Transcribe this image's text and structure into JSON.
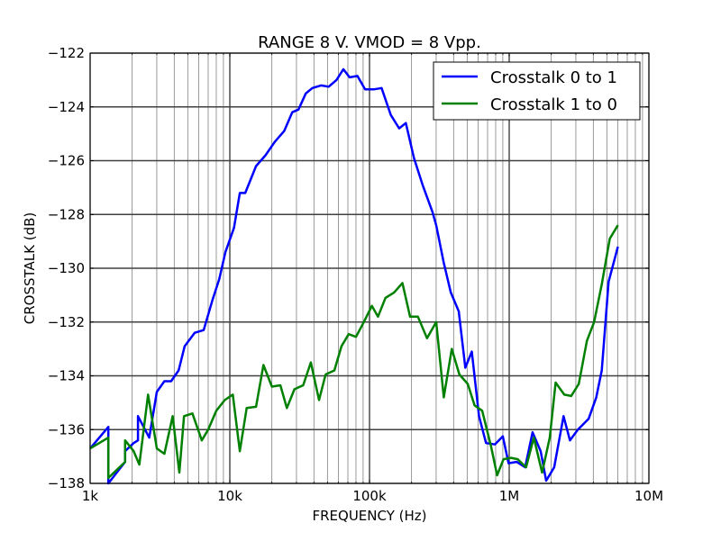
{
  "chart_data": {
    "type": "line",
    "title": "RANGE 8 V. VMOD = 8 Vpp.",
    "xlabel": "FREQUENCY (Hz)",
    "ylabel": "CROSSTALK (dB)",
    "xscale": "log",
    "xlim": [
      1000,
      10000000
    ],
    "ylim": [
      -138,
      -122
    ],
    "x_ticks": [
      1000,
      10000,
      100000,
      1000000,
      10000000
    ],
    "x_tick_labels": [
      "1k",
      "10k",
      "100k",
      "1M",
      "10M"
    ],
    "y_ticks": [
      -122,
      -124,
      -126,
      -128,
      -130,
      -132,
      -134,
      -136,
      -138
    ],
    "y_tick_labels": [
      "−122",
      "−124",
      "−126",
      "−128",
      "−130",
      "−132",
      "−134",
      "−136",
      "−138"
    ],
    "grid": true,
    "legend_position": "top-right",
    "series": [
      {
        "name": "Crosstalk 0 to 1",
        "color": "#0000ff",
        "points": [
          [
            1000,
            -136.7
          ],
          [
            1350,
            -135.9
          ],
          [
            1350,
            -138.0
          ],
          [
            1780,
            -137.2
          ],
          [
            1780,
            -136.8
          ],
          [
            2050,
            -136.5
          ],
          [
            2200,
            -136.4
          ],
          [
            2200,
            -135.5
          ],
          [
            2650,
            -136.3
          ],
          [
            3000,
            -134.6
          ],
          [
            3400,
            -134.2
          ],
          [
            3800,
            -134.2
          ],
          [
            4300,
            -133.8
          ],
          [
            4750,
            -132.9
          ],
          [
            5600,
            -132.4
          ],
          [
            6500,
            -132.3
          ],
          [
            7500,
            -131.2
          ],
          [
            8400,
            -130.4
          ],
          [
            9300,
            -129.4
          ],
          [
            10700,
            -128.5
          ],
          [
            11800,
            -127.2
          ],
          [
            12900,
            -127.2
          ],
          [
            15400,
            -126.2
          ],
          [
            18000,
            -125.8
          ],
          [
            21000,
            -125.3
          ],
          [
            24500,
            -124.9
          ],
          [
            28000,
            -124.2
          ],
          [
            31000,
            -124.1
          ],
          [
            35000,
            -123.5
          ],
          [
            39000,
            -123.3
          ],
          [
            45000,
            -123.2
          ],
          [
            51000,
            -123.25
          ],
          [
            58000,
            -123.0
          ],
          [
            65000,
            -122.6
          ],
          [
            72000,
            -122.9
          ],
          [
            82000,
            -122.85
          ],
          [
            93000,
            -123.35
          ],
          [
            107000,
            -123.35
          ],
          [
            122000,
            -123.3
          ],
          [
            142000,
            -124.3
          ],
          [
            163000,
            -124.8
          ],
          [
            182000,
            -124.6
          ],
          [
            208000,
            -125.9
          ],
          [
            240000,
            -126.9
          ],
          [
            282000,
            -127.9
          ],
          [
            300000,
            -128.4
          ],
          [
            340000,
            -129.8
          ],
          [
            382000,
            -130.9
          ],
          [
            435000,
            -131.6
          ],
          [
            485000,
            -133.7
          ],
          [
            540000,
            -133.1
          ],
          [
            608000,
            -135.5
          ],
          [
            683000,
            -136.5
          ],
          [
            790000,
            -136.55
          ],
          [
            900000,
            -136.25
          ],
          [
            990000,
            -137.25
          ],
          [
            1130000,
            -137.2
          ],
          [
            1300000,
            -137.4
          ],
          [
            1470000,
            -136.1
          ],
          [
            1680000,
            -136.8
          ],
          [
            1840000,
            -137.9
          ],
          [
            2100000,
            -137.4
          ],
          [
            2450000,
            -135.5
          ],
          [
            2720000,
            -136.4
          ],
          [
            3100000,
            -136.0
          ],
          [
            3700000,
            -135.6
          ],
          [
            4200000,
            -134.8
          ],
          [
            4600000,
            -133.8
          ],
          [
            5150000,
            -130.5
          ],
          [
            6000000,
            -129.2
          ]
        ]
      },
      {
        "name": "Crosstalk 1 to 0",
        "color": "#008000",
        "points": [
          [
            1000,
            -136.7
          ],
          [
            1350,
            -136.3
          ],
          [
            1350,
            -137.8
          ],
          [
            1780,
            -137.2
          ],
          [
            1780,
            -136.4
          ],
          [
            2050,
            -136.8
          ],
          [
            2250,
            -137.3
          ],
          [
            2600,
            -134.7
          ],
          [
            3000,
            -136.7
          ],
          [
            3400,
            -136.9
          ],
          [
            3900,
            -135.5
          ],
          [
            4350,
            -137.6
          ],
          [
            4700,
            -135.5
          ],
          [
            5400,
            -135.4
          ],
          [
            6300,
            -136.4
          ],
          [
            7000,
            -136.0
          ],
          [
            8000,
            -135.3
          ],
          [
            9200,
            -134.9
          ],
          [
            10500,
            -134.7
          ],
          [
            11800,
            -136.8
          ],
          [
            13200,
            -135.2
          ],
          [
            15400,
            -135.15
          ],
          [
            17400,
            -133.6
          ],
          [
            20000,
            -134.4
          ],
          [
            23000,
            -134.35
          ],
          [
            25600,
            -135.2
          ],
          [
            29000,
            -134.5
          ],
          [
            33500,
            -134.35
          ],
          [
            38000,
            -133.5
          ],
          [
            43500,
            -134.9
          ],
          [
            48500,
            -133.95
          ],
          [
            56000,
            -133.8
          ],
          [
            63000,
            -132.9
          ],
          [
            71000,
            -132.45
          ],
          [
            80000,
            -132.55
          ],
          [
            91000,
            -132.0
          ],
          [
            104000,
            -131.4
          ],
          [
            115000,
            -131.8
          ],
          [
            130000,
            -131.1
          ],
          [
            150000,
            -130.9
          ],
          [
            172000,
            -130.55
          ],
          [
            195000,
            -131.8
          ],
          [
            222000,
            -131.8
          ],
          [
            258000,
            -132.6
          ],
          [
            300000,
            -132.0
          ],
          [
            340000,
            -134.8
          ],
          [
            388000,
            -133.0
          ],
          [
            440000,
            -133.95
          ],
          [
            505000,
            -134.3
          ],
          [
            565000,
            -135.1
          ],
          [
            640000,
            -135.3
          ],
          [
            740000,
            -136.6
          ],
          [
            820000,
            -137.7
          ],
          [
            910000,
            -137.1
          ],
          [
            1030000,
            -137.05
          ],
          [
            1150000,
            -137.1
          ],
          [
            1320000,
            -137.4
          ],
          [
            1500000,
            -136.3
          ],
          [
            1720000,
            -137.6
          ],
          [
            1950000,
            -136.3
          ],
          [
            2150000,
            -134.25
          ],
          [
            2480000,
            -134.7
          ],
          [
            2780000,
            -134.75
          ],
          [
            3150000,
            -134.3
          ],
          [
            3600000,
            -132.7
          ],
          [
            4050000,
            -132.0
          ],
          [
            4600000,
            -130.6
          ],
          [
            5250000,
            -128.9
          ],
          [
            6000000,
            -128.4
          ]
        ]
      }
    ]
  }
}
